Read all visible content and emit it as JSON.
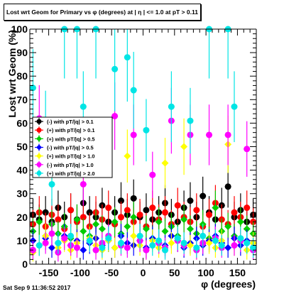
{
  "chart_data": {
    "type": "scatter",
    "title": "Lost wrt Geom for Primary vs φ (degrees) at | η | <= 1.0 at pT > 0.11",
    "xlabel": "φ (degrees)",
    "ylabel": "Lost wrt Geom (%)",
    "xlim": [
      -180,
      180
    ],
    "ylim": [
      0,
      100
    ],
    "x_ticks": [
      "-150",
      "-100",
      "-50",
      "0",
      "50",
      "100",
      "150"
    ],
    "y_ticks": [
      "0",
      "10",
      "20",
      "30",
      "40",
      "50",
      "60",
      "70",
      "80",
      "90",
      "100"
    ],
    "grid": false,
    "legend_position": "left-middle",
    "series": [
      {
        "name": "(-) with pT/|q| > 0.1",
        "color": "#000000",
        "marker": "circle",
        "points": [
          [
            -175,
            21
          ],
          [
            -165,
            19
          ],
          [
            -155,
            22
          ],
          [
            -145,
            18
          ],
          [
            -135,
            24
          ],
          [
            -125,
            20
          ],
          [
            -115,
            23
          ],
          [
            -105,
            19
          ],
          [
            -95,
            26
          ],
          [
            -85,
            22
          ],
          [
            -75,
            20
          ],
          [
            -65,
            25
          ],
          [
            -55,
            18
          ],
          [
            -45,
            22
          ],
          [
            -35,
            27
          ],
          [
            -25,
            21
          ],
          [
            -15,
            28
          ],
          [
            -5,
            20
          ],
          [
            5,
            23
          ],
          [
            15,
            19
          ],
          [
            25,
            22
          ],
          [
            35,
            26
          ],
          [
            45,
            21
          ],
          [
            55,
            18
          ],
          [
            65,
            24
          ],
          [
            75,
            27
          ],
          [
            85,
            20
          ],
          [
            95,
            29
          ],
          [
            105,
            22
          ],
          [
            115,
            19
          ],
          [
            125,
            25
          ],
          [
            135,
            33
          ],
          [
            145,
            20
          ],
          [
            155,
            23
          ],
          [
            165,
            18
          ],
          [
            175,
            21
          ]
        ]
      },
      {
        "name": "(+) with pT/|q| > 0.1",
        "color": "#ff0000",
        "marker": "circle",
        "points": [
          [
            -175,
            17
          ],
          [
            -165,
            22
          ],
          [
            -155,
            16
          ],
          [
            -145,
            21
          ],
          [
            -135,
            19
          ],
          [
            -125,
            15
          ],
          [
            -115,
            23
          ],
          [
            -105,
            18
          ],
          [
            -95,
            20
          ],
          [
            -85,
            16
          ],
          [
            -75,
            22
          ],
          [
            -65,
            19
          ],
          [
            -55,
            24
          ],
          [
            -45,
            17
          ],
          [
            -35,
            20
          ],
          [
            -25,
            23
          ],
          [
            -15,
            18
          ],
          [
            -5,
            21
          ],
          [
            5,
            16
          ],
          [
            15,
            24
          ],
          [
            25,
            19
          ],
          [
            35,
            22
          ],
          [
            45,
            17
          ],
          [
            55,
            25
          ],
          [
            65,
            20
          ],
          [
            75,
            18
          ],
          [
            85,
            23
          ],
          [
            95,
            16
          ],
          [
            105,
            21
          ],
          [
            115,
            26
          ],
          [
            125,
            19
          ],
          [
            135,
            17
          ],
          [
            145,
            22
          ],
          [
            155,
            20
          ],
          [
            165,
            24
          ],
          [
            175,
            18
          ]
        ]
      },
      {
        "name": "(+) with pT/|q| > 0.5",
        "color": "#00cc00",
        "marker": "diamond",
        "points": [
          [
            -175,
            14
          ],
          [
            -165,
            18
          ],
          [
            -155,
            12
          ],
          [
            -145,
            17
          ],
          [
            -135,
            13
          ],
          [
            -125,
            16
          ],
          [
            -115,
            11
          ],
          [
            -105,
            19
          ],
          [
            -95,
            14
          ],
          [
            -85,
            12
          ],
          [
            -75,
            17
          ],
          [
            -65,
            15
          ],
          [
            -55,
            10
          ],
          [
            -45,
            18
          ],
          [
            -35,
            13
          ],
          [
            -25,
            16
          ],
          [
            -15,
            20
          ],
          [
            -5,
            12
          ],
          [
            5,
            15
          ],
          [
            15,
            11
          ],
          [
            25,
            18
          ],
          [
            35,
            14
          ],
          [
            45,
            16
          ],
          [
            55,
            12
          ],
          [
            65,
            19
          ],
          [
            75,
            15
          ],
          [
            85,
            13
          ],
          [
            95,
            17
          ],
          [
            105,
            11
          ],
          [
            115,
            24
          ],
          [
            125,
            14
          ],
          [
            135,
            16
          ],
          [
            145,
            12
          ],
          [
            155,
            18
          ],
          [
            165,
            15
          ],
          [
            175,
            13
          ]
        ]
      },
      {
        "name": "(-) with pT/|q| > 0.5",
        "color": "#0000ff",
        "marker": "diamond",
        "points": [
          [
            -175,
            10
          ],
          [
            -165,
            8
          ],
          [
            -155,
            11
          ],
          [
            -145,
            7
          ],
          [
            -135,
            9
          ],
          [
            -125,
            12
          ],
          [
            -115,
            8
          ],
          [
            -105,
            10
          ],
          [
            -95,
            6
          ],
          [
            -85,
            9
          ],
          [
            -75,
            11
          ],
          [
            -65,
            8
          ],
          [
            -55,
            10
          ],
          [
            -45,
            7
          ],
          [
            -35,
            12
          ],
          [
            -25,
            9
          ],
          [
            -15,
            8
          ],
          [
            -5,
            10
          ],
          [
            5,
            7
          ],
          [
            15,
            11
          ],
          [
            25,
            9
          ],
          [
            35,
            8
          ],
          [
            45,
            12
          ],
          [
            55,
            10
          ],
          [
            65,
            7
          ],
          [
            75,
            9
          ],
          [
            85,
            11
          ],
          [
            95,
            8
          ],
          [
            105,
            10
          ],
          [
            115,
            12
          ],
          [
            125,
            9
          ],
          [
            135,
            7
          ],
          [
            145,
            11
          ],
          [
            155,
            8
          ],
          [
            165,
            10
          ],
          [
            175,
            9
          ]
        ]
      },
      {
        "name": "(+) with pT/|q| > 1.0",
        "color": "#ffff00",
        "marker": "diamond",
        "points": [
          [
            -175,
            5
          ],
          [
            -165,
            8
          ],
          [
            -155,
            12
          ],
          [
            -145,
            45
          ],
          [
            -135,
            7
          ],
          [
            -125,
            10
          ],
          [
            -115,
            6
          ],
          [
            -105,
            9
          ],
          [
            -95,
            43
          ],
          [
            -85,
            11
          ],
          [
            -75,
            8
          ],
          [
            -65,
            6
          ],
          [
            -55,
            10
          ],
          [
            -45,
            7
          ],
          [
            -35,
            9
          ],
          [
            -25,
            46
          ],
          [
            -15,
            12
          ],
          [
            -5,
            8
          ],
          [
            5,
            6
          ],
          [
            15,
            10
          ],
          [
            25,
            7
          ],
          [
            35,
            43
          ],
          [
            45,
            9
          ],
          [
            55,
            11
          ],
          [
            65,
            50
          ],
          [
            75,
            8
          ],
          [
            85,
            6
          ],
          [
            95,
            12
          ],
          [
            105,
            9
          ],
          [
            115,
            7
          ],
          [
            125,
            10
          ],
          [
            135,
            51
          ],
          [
            145,
            8
          ],
          [
            155,
            11
          ],
          [
            165,
            6
          ],
          [
            175,
            9
          ]
        ]
      },
      {
        "name": "(-) with pT/|q| > 1.0",
        "color": "#ff00ff",
        "marker": "circle",
        "points": [
          [
            -175,
            6
          ],
          [
            -165,
            62
          ],
          [
            -155,
            9
          ],
          [
            -145,
            13
          ],
          [
            -135,
            5
          ],
          [
            -125,
            11
          ],
          [
            -115,
            8
          ],
          [
            -105,
            7
          ],
          [
            -95,
            34
          ],
          [
            -85,
            10
          ],
          [
            -75,
            6
          ],
          [
            -65,
            9
          ],
          [
            -55,
            12
          ],
          [
            -45,
            63
          ],
          [
            -35,
            8
          ],
          [
            -25,
            7
          ],
          [
            -15,
            55
          ],
          [
            -5,
            10
          ],
          [
            5,
            6
          ],
          [
            15,
            38
          ],
          [
            25,
            9
          ],
          [
            35,
            7
          ],
          [
            45,
            61
          ],
          [
            55,
            10
          ],
          [
            65,
            8
          ],
          [
            75,
            55
          ],
          [
            85,
            6
          ],
          [
            95,
            9
          ],
          [
            105,
            55
          ],
          [
            115,
            11
          ],
          [
            125,
            7
          ],
          [
            135,
            55
          ],
          [
            145,
            8
          ],
          [
            155,
            10
          ],
          [
            165,
            49
          ],
          [
            175,
            6
          ]
        ]
      },
      {
        "name": "(+) with pT/|q| > 2.0",
        "color": "#00e5e5",
        "marker": "circle",
        "points": [
          [
            -175,
            75
          ],
          [
            -165,
            8
          ],
          [
            -155,
            60
          ],
          [
            -145,
            34
          ],
          [
            -135,
            9
          ],
          [
            -125,
            100
          ],
          [
            -115,
            12
          ],
          [
            -105,
            100
          ],
          [
            -95,
            67
          ],
          [
            -85,
            10
          ],
          [
            -75,
            100
          ],
          [
            -65,
            7
          ],
          [
            -55,
            11
          ],
          [
            -45,
            83
          ],
          [
            -35,
            9
          ],
          [
            -25,
            88
          ],
          [
            -15,
            74
          ],
          [
            -5,
            12
          ],
          [
            5,
            57
          ],
          [
            15,
            8
          ],
          [
            25,
            10
          ],
          [
            35,
            6
          ],
          [
            45,
            67
          ],
          [
            55,
            11
          ],
          [
            65,
            9
          ],
          [
            75,
            61
          ],
          [
            85,
            7
          ],
          [
            95,
            12
          ],
          [
            105,
            100
          ],
          [
            115,
            10
          ],
          [
            125,
            8
          ],
          [
            135,
            100
          ],
          [
            145,
            67
          ],
          [
            155,
            11
          ],
          [
            165,
            9
          ],
          [
            175,
            7
          ]
        ]
      }
    ]
  },
  "footer_text": "Sat Sep  9 11:36:52 2017"
}
